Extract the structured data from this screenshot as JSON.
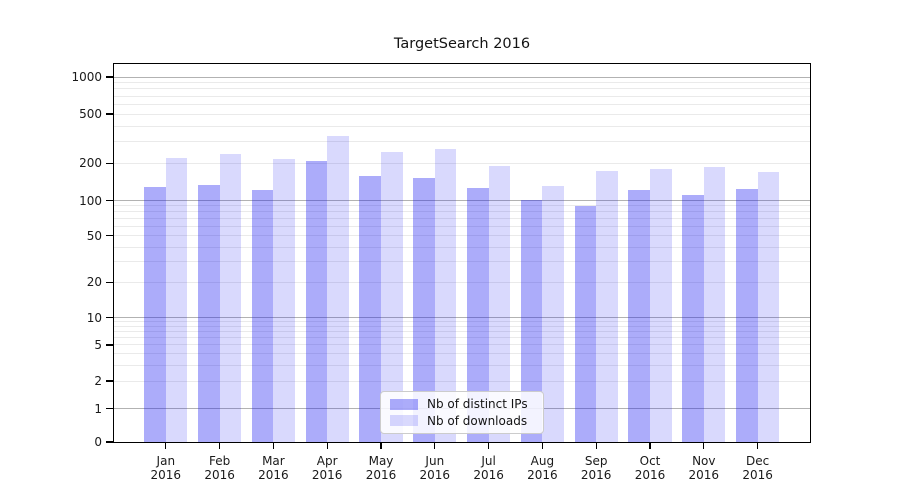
{
  "chart_data": {
    "type": "bar",
    "title": "TargetSearch 2016",
    "xlabel": "",
    "ylabel": "",
    "scale": "symlog (linear 0-1, log decades above)",
    "ylim": [
      0,
      1400
    ],
    "grid": "horizontal major and minor gridlines",
    "legend_position": "inside lower-center",
    "categories": [
      {
        "label": "Jan",
        "sublabel": "2016"
      },
      {
        "label": "Feb",
        "sublabel": "2016"
      },
      {
        "label": "Mar",
        "sublabel": "2016"
      },
      {
        "label": "Apr",
        "sublabel": "2016"
      },
      {
        "label": "May",
        "sublabel": "2016"
      },
      {
        "label": "Jun",
        "sublabel": "2016"
      },
      {
        "label": "Jul",
        "sublabel": "2016"
      },
      {
        "label": "Aug",
        "sublabel": "2016"
      },
      {
        "label": "Sep",
        "sublabel": "2016"
      },
      {
        "label": "Oct",
        "sublabel": "2016"
      },
      {
        "label": "Nov",
        "sublabel": "2016"
      },
      {
        "label": "Dec",
        "sublabel": "2016"
      }
    ],
    "series": [
      {
        "name": "Nb of distinct IPs",
        "color": "rgba(18,18,240,0.35)",
        "values": [
          129,
          133,
          121,
          209,
          159,
          151,
          127,
          101,
          89,
          122,
          110,
          125
        ]
      },
      {
        "name": "Nb of downloads",
        "color": "rgba(18,18,240,0.16)",
        "values": [
          220,
          240,
          215,
          330,
          247,
          262,
          189,
          130,
          172,
          180,
          186,
          170
        ]
      }
    ],
    "yticks": [
      0,
      1,
      2,
      5,
      10,
      20,
      50,
      100,
      200,
      500,
      1000
    ],
    "ytick_major": [
      1,
      10,
      100,
      1000
    ],
    "colors": {
      "major_grid": "#b2b2b2",
      "minor_grid": "#eaeaea",
      "axis": "#000000",
      "text": "#1a1a1a"
    }
  }
}
